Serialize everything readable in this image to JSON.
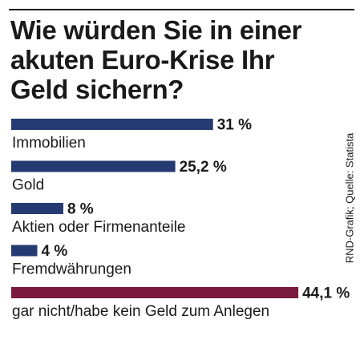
{
  "title_lines": [
    "Wie würden Sie in einer",
    "akuten Euro-Krise Ihr",
    "Geld sichern?"
  ],
  "source": "RND-Grafik; Quelle: Statista",
  "colors": {
    "primary_bar": "#263a72",
    "highlight_bar": "#7a1a3e",
    "text": "#1a1a1a"
  },
  "chart_data": {
    "type": "bar",
    "orientation": "horizontal",
    "categories": [
      "Immobilien",
      "Gold",
      "Aktien oder Firmenanteile",
      "Fremdwährungen",
      "gar nicht/habe kein Geld zum Anlegen"
    ],
    "values": [
      31,
      25.2,
      8,
      4,
      44.1
    ],
    "value_labels": [
      "31 %",
      "25,2 %",
      "8 %",
      "4 %",
      "44,1 %"
    ],
    "unit": "%",
    "highlight_index": 4
  }
}
